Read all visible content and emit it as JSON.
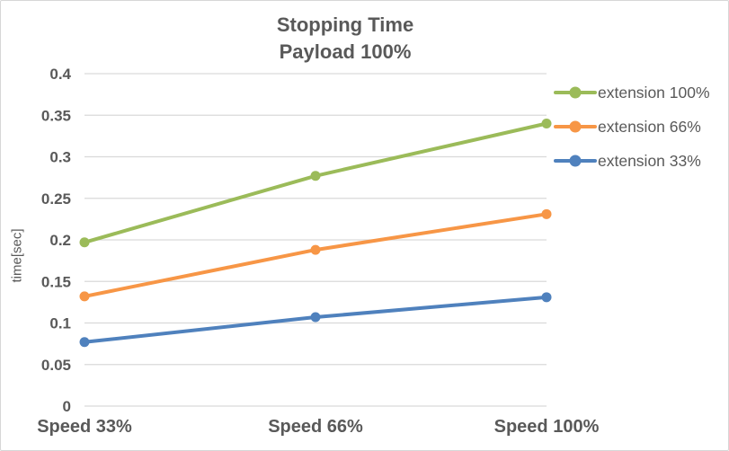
{
  "chart_data": {
    "type": "line",
    "title": "Stopping Time",
    "subtitle": "Payload 100%",
    "ylabel": "time[sec]",
    "xlabel": "",
    "categories": [
      "Speed 33%",
      "Speed 66%",
      "Speed 100%"
    ],
    "series": [
      {
        "name": "extension 100%",
        "color": "#9BBB59",
        "values": [
          0.197,
          0.277,
          0.34
        ]
      },
      {
        "name": "extension 66%",
        "color": "#F79646",
        "values": [
          0.132,
          0.188,
          0.231
        ]
      },
      {
        "name": "extension 33%",
        "color": "#4F81BD",
        "values": [
          0.077,
          0.107,
          0.131
        ]
      }
    ],
    "ylim": [
      0,
      0.4
    ],
    "ytick_labels": [
      "0",
      "0.05",
      "0.1",
      "0.15",
      "0.2",
      "0.25",
      "0.3",
      "0.35",
      "0.4"
    ],
    "grid": true,
    "legend_position": "right",
    "text_color": "#595959",
    "gridline_color": "#D9D9D9"
  }
}
